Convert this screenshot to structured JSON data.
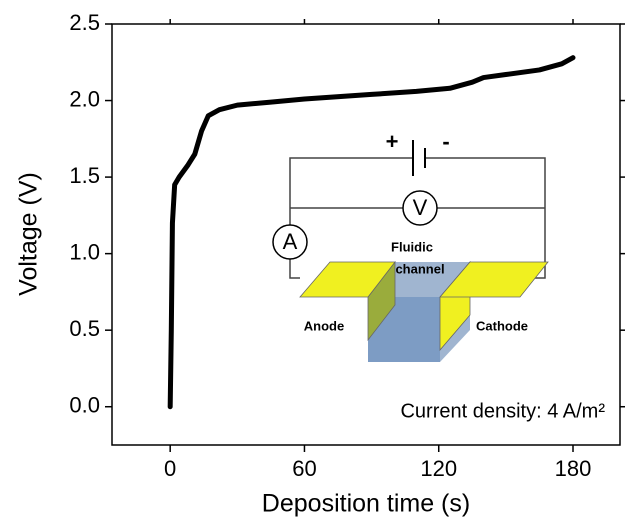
{
  "chart_data": {
    "type": "line",
    "xlabel": "Deposition time (s)",
    "ylabel": "Voltage (V)",
    "annotation": "Current density: 4 A/m²",
    "inset_labels": {
      "plus": "+",
      "minus": "-",
      "voltmeter": "V",
      "ammeter": "A",
      "channel_line1": "Fluidic",
      "channel_line2": "channel",
      "anode": "Anode",
      "cathode": "Cathode"
    },
    "xlim": [
      -26,
      201
    ],
    "ylim": [
      -0.25,
      2.5
    ],
    "xticks": [
      0,
      60,
      120,
      180
    ],
    "yticks": [
      {
        "value": 0,
        "label": "0.0"
      },
      0.5,
      {
        "value": 1,
        "label": "1.0"
      },
      1.5,
      {
        "value": 2,
        "label": "2.0"
      },
      2.5
    ],
    "series": [
      {
        "color": "#000000",
        "x": [
          0,
          0.5,
          1,
          2,
          4,
          8,
          11,
          14,
          17,
          22,
          30,
          45,
          60,
          90,
          110,
          125,
          135,
          140,
          150,
          165,
          175,
          180
        ],
        "values": [
          0,
          0.5,
          1.2,
          1.45,
          1.5,
          1.58,
          1.65,
          1.8,
          1.9,
          1.94,
          1.97,
          1.99,
          2.01,
          2.04,
          2.06,
          2.08,
          2.12,
          2.15,
          2.17,
          2.2,
          2.24,
          2.28
        ]
      }
    ]
  }
}
